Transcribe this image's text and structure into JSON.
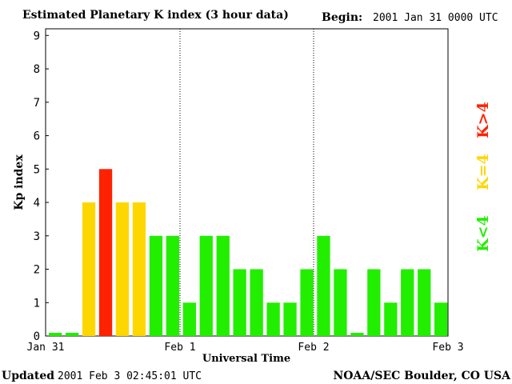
{
  "header": {
    "title": "Estimated Planetary K index (3 hour data)",
    "begin_label": "Begin:",
    "begin_value": "2001 Jan 31 0000 UTC"
  },
  "footer": {
    "updated_label": "Updated",
    "updated_value": "2001 Feb  3 02:45:01 UTC",
    "credit": "NOAA/SEC Boulder, CO USA"
  },
  "legend": [
    {
      "label": "K>4",
      "color": "#ff2200"
    },
    {
      "label": "K=4",
      "color": "#ffd700"
    },
    {
      "label": "K<4",
      "color": "#22ee00"
    }
  ],
  "colors": {
    "low": "#22ee00",
    "mid": "#ffd700",
    "high": "#ff2200"
  },
  "chart_data": {
    "type": "bar",
    "title": "Estimated Planetary K index (3 hour data)",
    "xlabel": "Universal Time",
    "ylabel": "Kp index",
    "ylim": [
      0,
      9
    ],
    "yticks": [
      "0",
      "1",
      "2",
      "3",
      "4",
      "5",
      "6",
      "7",
      "8",
      "9"
    ],
    "xticks": [
      "Jan 31",
      "Feb 1",
      "Feb 2",
      "Feb 3"
    ],
    "day_separators": [
      "Feb 1",
      "Feb 2"
    ],
    "grid": false,
    "legend_position": "right",
    "values": [
      0,
      0,
      4,
      5,
      4,
      4,
      3,
      3,
      1,
      3,
      3,
      2,
      2,
      1,
      1,
      2,
      3,
      2,
      0,
      2,
      1,
      2,
      2,
      1
    ]
  }
}
